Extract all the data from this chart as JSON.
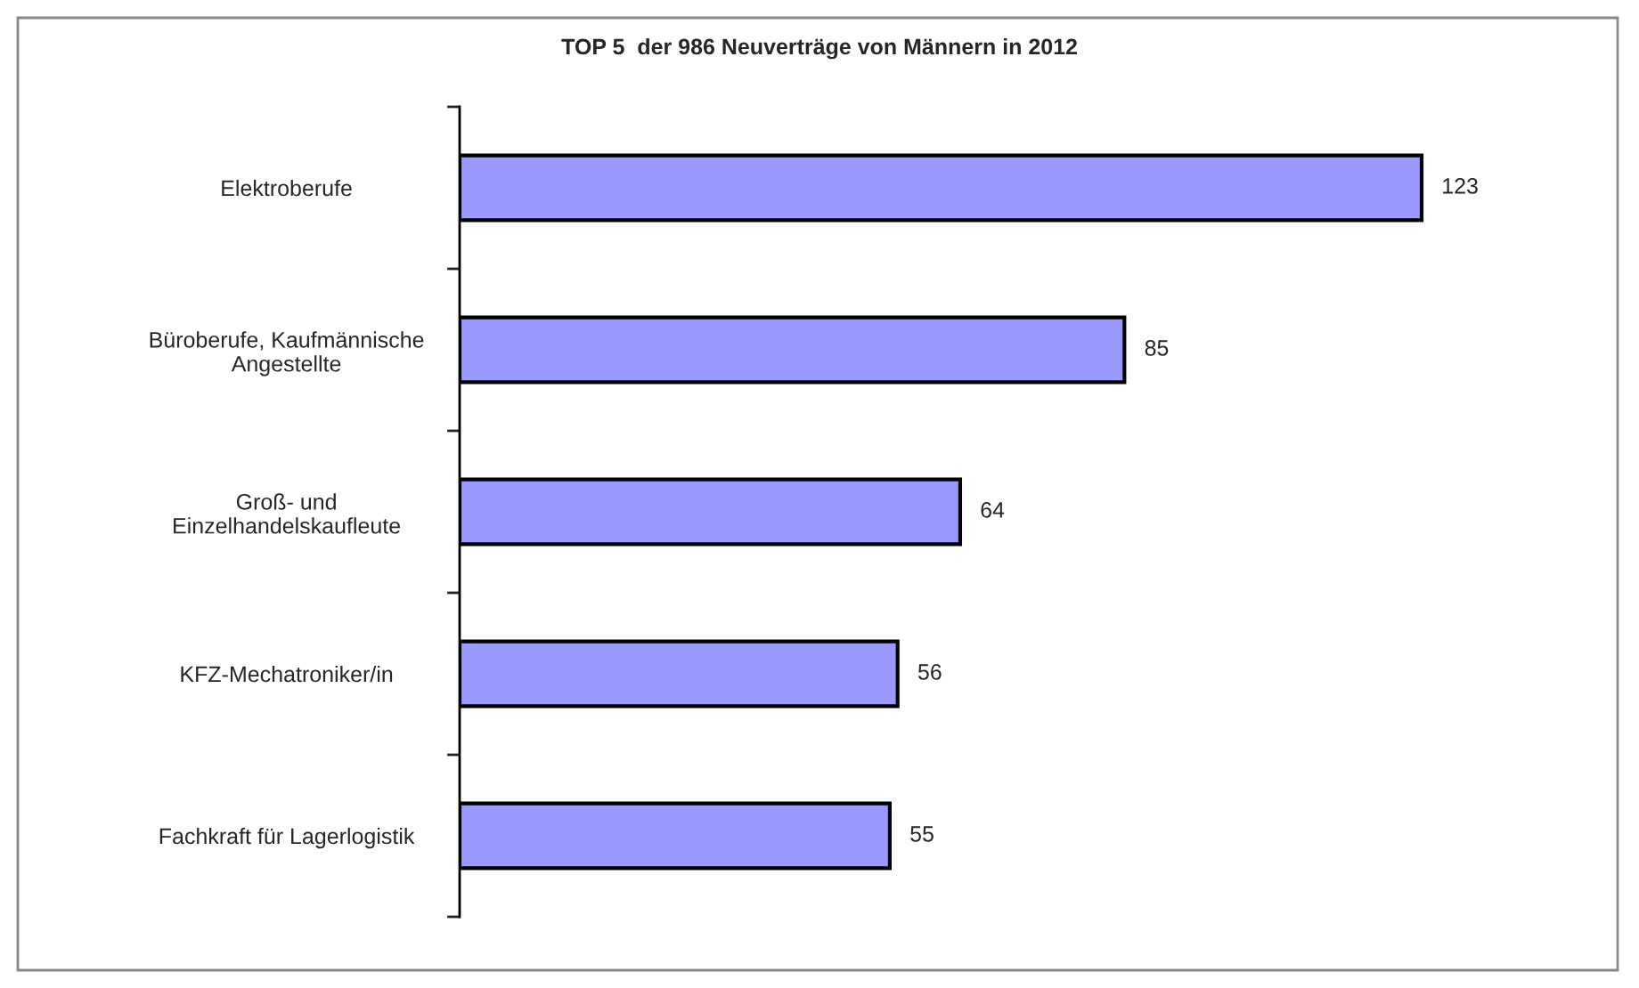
{
  "chart_data": {
    "type": "bar",
    "orientation": "horizontal",
    "title": "TOP 5  der 986 Neuverträge von Männern in 2012",
    "categories": [
      "Elektroberufe",
      "Büroberufe, Kaufmännische\nAngestellte",
      "Groß- und\nEinzelhandelskaufleute",
      "KFZ-Mechatroniker/in",
      "Fachkraft für Lagerlogistik"
    ],
    "values": [
      123,
      85,
      64,
      56,
      55
    ],
    "color": "#9999ff",
    "data_labels": true,
    "grid": false,
    "legend": false
  }
}
